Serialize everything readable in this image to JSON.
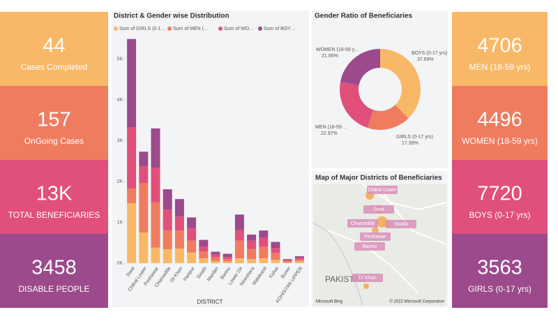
{
  "kpi_left": [
    {
      "value": "44",
      "label": "Cases Completed",
      "color": "#f9b867"
    },
    {
      "value": "157",
      "label": "OnGoing Cases",
      "color": "#f07c60"
    },
    {
      "value": "13K",
      "label": "TOTAL BENEFICIARIES",
      "color": "#e0507a"
    },
    {
      "value": "3458",
      "label": "DISABLE PEOPLE",
      "color": "#9c4a8c"
    }
  ],
  "kpi_right": [
    {
      "value": "4706",
      "label": "MEN (18-59 yrs)",
      "color": "#f9b867"
    },
    {
      "value": "4496",
      "label": "WOMEN (18-59 yrs)",
      "color": "#f07c60"
    },
    {
      "value": "7720",
      "label": "BOYS (0-17 yrs)",
      "color": "#e0507a"
    },
    {
      "value": "3563",
      "label": "GIRLS (0-17 yrs)",
      "color": "#9c4a8c"
    }
  ],
  "chart_data": [
    {
      "type": "bar",
      "title": "District & Gender wise Distribution",
      "x_label": "DISTRICT",
      "categories": [
        "Swat",
        "Chitral Lower",
        "Peshawar",
        "Charsadda",
        "DI Khan",
        "Haripur",
        "Swabi",
        "Mardan",
        "Bannu",
        "Lower Dir",
        "Nowshera",
        "Malakand",
        "Kohat",
        "Buner",
        "KOHISTAN UPPER"
      ],
      "series": [
        {
          "name": "Sum of GIRLS (0-1…",
          "color": "#f9b867",
          "values": [
            1470,
            750,
            380,
            340,
            360,
            260,
            120,
            50,
            40,
            120,
            100,
            120,
            80,
            20,
            50
          ]
        },
        {
          "name": "Sum of MEN (…",
          "color": "#f07c60",
          "values": [
            360,
            1210,
            1110,
            460,
            440,
            290,
            170,
            90,
            60,
            430,
            250,
            280,
            170,
            30,
            40
          ]
        },
        {
          "name": "Sum of WO…",
          "color": "#e0507a",
          "values": [
            1490,
            410,
            850,
            510,
            340,
            310,
            120,
            70,
            50,
            260,
            200,
            220,
            120,
            30,
            40
          ]
        },
        {
          "name": "Sum of BOY…",
          "color": "#9c4a8c",
          "values": [
            2170,
            360,
            960,
            500,
            430,
            260,
            160,
            70,
            80,
            380,
            150,
            180,
            150,
            20,
            40
          ]
        }
      ],
      "ylim": [
        0,
        5600
      ],
      "yticks": [
        {
          "value": 0,
          "label": "0K"
        },
        {
          "value": 1000,
          "label": "1K"
        },
        {
          "value": 2000,
          "label": "2K"
        },
        {
          "value": 3000,
          "label": "3K"
        },
        {
          "value": 4000,
          "label": "4K"
        },
        {
          "value": 5000,
          "label": "5K"
        }
      ]
    },
    {
      "type": "pie",
      "title": "Gender Ratio of Beneficiaries",
      "categories": [
        "BOYS (0-17 yrs)",
        "GIRLS (0-17 yrs)",
        "MEN (18-59…",
        "WOMEN (18-59 y…"
      ],
      "values": [
        37.69,
        17.39,
        22.97,
        21.95
      ],
      "value_labels": [
        "37.69%",
        "17.39%",
        "22.97%",
        "21.95%"
      ],
      "colors": [
        "#f9b867",
        "#f07c60",
        "#e0507a",
        "#9c4a8c"
      ]
    }
  ],
  "map": {
    "title": "Map of Major Districts of Beneficiaries",
    "labels": [
      "Chitral Lower",
      "Swat",
      "Charsadda",
      "Swabi",
      "Peshawar",
      "Bannu",
      "DI Khan"
    ],
    "country": "PAKISTAN",
    "brand": "Microsoft Bing",
    "copyright": "© 2022 Microsoft Corporation"
  }
}
